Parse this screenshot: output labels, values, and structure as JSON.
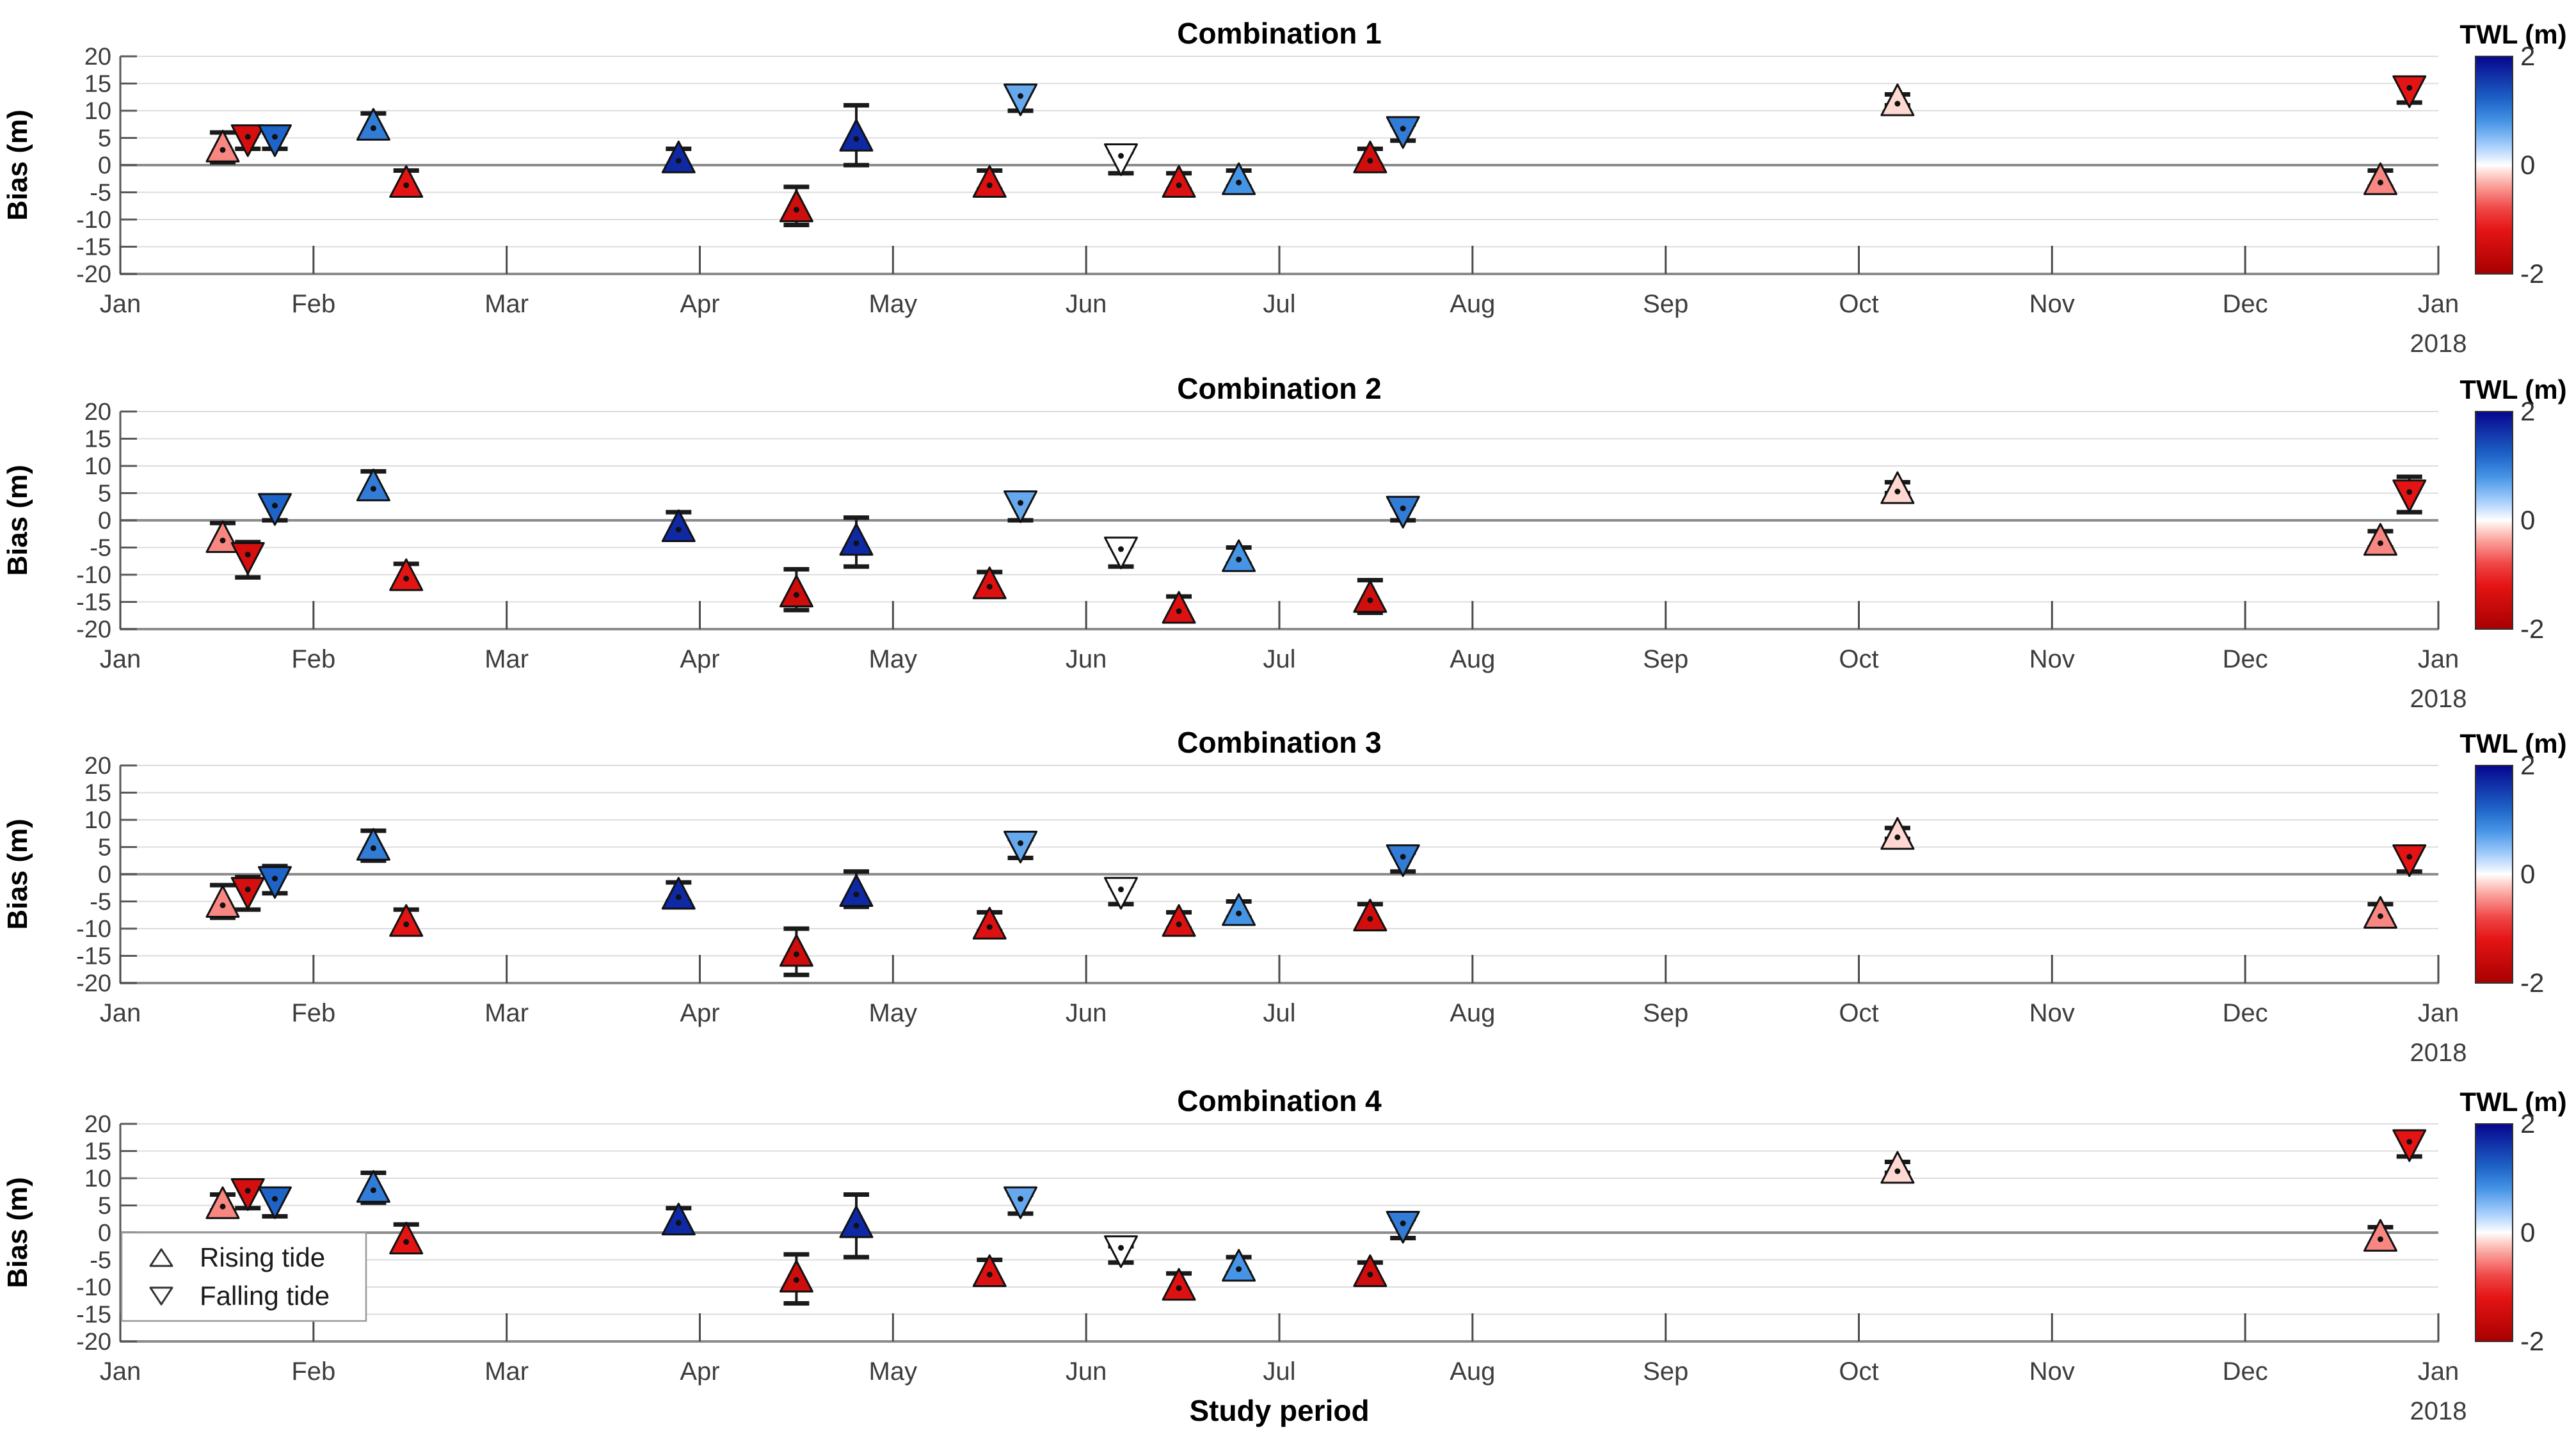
{
  "figure": {
    "ylabel": "Bias (m)",
    "xlabel": "Study period",
    "year_label": "2018",
    "ylim": [
      -20,
      20
    ],
    "y_ticks": [
      20,
      15,
      10,
      5,
      0,
      -5,
      -10,
      -15,
      -20
    ],
    "x_tick_labels": [
      "Jan",
      "Feb",
      "Mar",
      "Apr",
      "May",
      "Jun",
      "Jul",
      "Aug",
      "Sep",
      "Oct",
      "Nov",
      "Dec",
      "Jan"
    ],
    "grid": "horizontal-on",
    "legend": [
      {
        "marker": "rising-triangle-up",
        "label": "Rising tide"
      },
      {
        "marker": "falling-triangle-down",
        "label": "Falling tide"
      }
    ],
    "colorbar": {
      "title": "TWL (m)",
      "tick_labels": [
        "2",
        "0",
        "-2"
      ],
      "tick_values": [
        2,
        0,
        -2
      ],
      "vmin": -2,
      "vmax": 2,
      "stops": [
        {
          "v": -2.0,
          "c": [
            168,
            0,
            0
          ]
        },
        {
          "v": -1.2,
          "c": [
            228,
            20,
            20
          ]
        },
        {
          "v": -0.8,
          "c": [
            240,
            70,
            70
          ]
        },
        {
          "v": -0.4,
          "c": [
            250,
            156,
            150
          ]
        },
        {
          "v": -0.15,
          "c": [
            255,
            216,
            210
          ]
        },
        {
          "v": 0.0,
          "c": [
            255,
            255,
            255
          ]
        },
        {
          "v": 0.15,
          "c": [
            216,
            233,
            255
          ]
        },
        {
          "v": 0.4,
          "c": [
            156,
            200,
            250
          ]
        },
        {
          "v": 0.8,
          "c": [
            70,
            148,
            230
          ]
        },
        {
          "v": 1.2,
          "c": [
            30,
            100,
            200
          ]
        },
        {
          "v": 2.0,
          "c": [
            6,
            6,
            142
          ]
        }
      ]
    },
    "colors": {
      "grid": "#dcdcdc",
      "zero_line": "#8c8c8c",
      "spine": "#595959",
      "bottom_spine": "#8c8c8c",
      "tick": "#4a4a4a",
      "tick_label": "#3d3d3d",
      "marker_edge": "#111111",
      "errorbar": "#1a1a1a",
      "title": "#000000"
    }
  },
  "chart_data": [
    {
      "type": "scatter",
      "title": "Combination 1",
      "xlabel_axis": "months since 2017-01-01 (0 = Jan 2017, 12 = Jan 2018)",
      "point_fields": "m = month position, t = tide (R rising / F falling), b = bias (m), lo/hi = error-bar range (m), twl = TWL color value (m)",
      "points": [
        {
          "m": 0.53,
          "date": "17 Jan",
          "t": "R",
          "b": 3.5,
          "lo": 0.5,
          "hi": 6.0,
          "twl": -0.5
        },
        {
          "m": 0.66,
          "date": "21 Jan",
          "t": "F",
          "b": 4.5,
          "lo": 3.0,
          "hi": 6.0,
          "twl": -1.4
        },
        {
          "m": 0.8,
          "date": "25 Jan",
          "t": "F",
          "b": 4.5,
          "lo": 3.0,
          "hi": 6.0,
          "twl": 1.2
        },
        {
          "m": 1.31,
          "date": "10 Feb",
          "t": "R",
          "b": 7.5,
          "lo": 5.0,
          "hi": 9.5,
          "twl": 1.0
        },
        {
          "m": 1.48,
          "date": "15 Feb",
          "t": "R",
          "b": -3.0,
          "lo": -5.0,
          "hi": -1.0,
          "twl": -1.2
        },
        {
          "m": 2.89,
          "date": "28 Mar",
          "t": "R",
          "b": 1.5,
          "lo": -0.5,
          "hi": 3.0,
          "twl": 1.7
        },
        {
          "m": 3.5,
          "date": "16 Apr",
          "t": "R",
          "b": -7.5,
          "lo": -11.0,
          "hi": -4.0,
          "twl": -1.5
        },
        {
          "m": 3.81,
          "date": "25 Apr",
          "t": "R",
          "b": 5.5,
          "lo": 0.0,
          "hi": 11.0,
          "twl": 1.7
        },
        {
          "m": 4.5,
          "date": "16 May",
          "t": "R",
          "b": -3.0,
          "lo": -4.5,
          "hi": -1.0,
          "twl": -1.3
        },
        {
          "m": 4.66,
          "date": "21 May",
          "t": "F",
          "b": 12.0,
          "lo": 10.0,
          "hi": 14.0,
          "twl": 0.65
        },
        {
          "m": 5.18,
          "date": "6 Jun",
          "t": "F",
          "b": 1.0,
          "lo": -1.5,
          "hi": 2.5,
          "twl": 0.0
        },
        {
          "m": 5.48,
          "date": "15 Jun",
          "t": "R",
          "b": -3.0,
          "lo": -4.5,
          "hi": -1.5,
          "twl": -1.3
        },
        {
          "m": 5.79,
          "date": "24 Jun",
          "t": "R",
          "b": -2.5,
          "lo": -4.0,
          "hi": -1.0,
          "twl": 0.8
        },
        {
          "m": 6.47,
          "date": "15 Jul",
          "t": "R",
          "b": 1.5,
          "lo": 0.0,
          "hi": 3.0,
          "twl": -1.45
        },
        {
          "m": 6.64,
          "date": "20 Jul",
          "t": "F",
          "b": 6.0,
          "lo": 4.5,
          "hi": 7.5,
          "twl": 1.0
        },
        {
          "m": 9.2,
          "date": "8 Oct",
          "t": "R",
          "b": 12.0,
          "lo": 11.0,
          "hi": 13.0,
          "twl": -0.15
        },
        {
          "m": 11.7,
          "date": "22 Dec",
          "t": "R",
          "b": -2.5,
          "lo": -4.0,
          "hi": -1.0,
          "twl": -0.5
        },
        {
          "m": 11.85,
          "date": "26 Dec",
          "t": "F",
          "b": 13.5,
          "lo": 11.5,
          "hi": 15.5,
          "twl": -1.2
        }
      ]
    },
    {
      "type": "scatter",
      "title": "Combination 2",
      "points": [
        {
          "m": 0.53,
          "date": "17 Jan",
          "t": "R",
          "b": -3.0,
          "lo": -5.5,
          "hi": -0.5,
          "twl": -0.5
        },
        {
          "m": 0.66,
          "date": "21 Jan",
          "t": "F",
          "b": -7.0,
          "lo": -10.5,
          "hi": -4.0,
          "twl": -1.4
        },
        {
          "m": 0.8,
          "date": "25 Jan",
          "t": "F",
          "b": 2.0,
          "lo": 0.0,
          "hi": 4.5,
          "twl": 1.2
        },
        {
          "m": 1.31,
          "date": "10 Feb",
          "t": "R",
          "b": 6.5,
          "lo": 4.0,
          "hi": 9.0,
          "twl": 1.0
        },
        {
          "m": 1.48,
          "date": "15 Feb",
          "t": "R",
          "b": -10.0,
          "lo": -12.5,
          "hi": -8.0,
          "twl": -1.2
        },
        {
          "m": 2.89,
          "date": "28 Mar",
          "t": "R",
          "b": -1.0,
          "lo": -3.5,
          "hi": 1.5,
          "twl": 1.7
        },
        {
          "m": 3.5,
          "date": "16 Apr",
          "t": "R",
          "b": -13.0,
          "lo": -16.5,
          "hi": -9.0,
          "twl": -1.5
        },
        {
          "m": 3.81,
          "date": "25 Apr",
          "t": "R",
          "b": -3.5,
          "lo": -8.5,
          "hi": 0.5,
          "twl": 1.7
        },
        {
          "m": 4.5,
          "date": "16 May",
          "t": "R",
          "b": -11.5,
          "lo": -13.5,
          "hi": -9.5,
          "twl": -1.3
        },
        {
          "m": 4.66,
          "date": "21 May",
          "t": "F",
          "b": 2.5,
          "lo": 0.0,
          "hi": 5.0,
          "twl": 0.65
        },
        {
          "m": 5.18,
          "date": "6 Jun",
          "t": "F",
          "b": -6.0,
          "lo": -8.5,
          "hi": -4.5,
          "twl": 0.0
        },
        {
          "m": 5.48,
          "date": "15 Jun",
          "t": "R",
          "b": -16.0,
          "lo": -18.5,
          "hi": -14.0,
          "twl": -1.3
        },
        {
          "m": 5.79,
          "date": "24 Jun",
          "t": "R",
          "b": -6.5,
          "lo": -8.0,
          "hi": -5.0,
          "twl": 0.8
        },
        {
          "m": 6.47,
          "date": "15 Jul",
          "t": "R",
          "b": -14.0,
          "lo": -17.0,
          "hi": -11.0,
          "twl": -1.45
        },
        {
          "m": 6.64,
          "date": "20 Jul",
          "t": "F",
          "b": 1.5,
          "lo": 0.0,
          "hi": 3.0,
          "twl": 1.0
        },
        {
          "m": 9.2,
          "date": "8 Oct",
          "t": "R",
          "b": 6.0,
          "lo": 5.0,
          "hi": 7.0,
          "twl": -0.15
        },
        {
          "m": 11.7,
          "date": "22 Dec",
          "t": "R",
          "b": -3.5,
          "lo": -5.0,
          "hi": -2.0,
          "twl": -0.5
        },
        {
          "m": 11.85,
          "date": "26 Dec",
          "t": "F",
          "b": 4.5,
          "lo": 1.5,
          "hi": 8.0,
          "twl": -1.2
        }
      ]
    },
    {
      "type": "scatter",
      "title": "Combination 3",
      "points": [
        {
          "m": 0.53,
          "date": "17 Jan",
          "t": "R",
          "b": -5.0,
          "lo": -8.0,
          "hi": -2.0,
          "twl": -0.5
        },
        {
          "m": 0.66,
          "date": "21 Jan",
          "t": "F",
          "b": -3.5,
          "lo": -6.5,
          "hi": -0.5,
          "twl": -1.4
        },
        {
          "m": 0.8,
          "date": "25 Jan",
          "t": "F",
          "b": -1.5,
          "lo": -3.5,
          "hi": 1.5,
          "twl": 1.2
        },
        {
          "m": 1.31,
          "date": "10 Feb",
          "t": "R",
          "b": 5.5,
          "lo": 2.5,
          "hi": 8.0,
          "twl": 1.0
        },
        {
          "m": 1.48,
          "date": "15 Feb",
          "t": "R",
          "b": -8.5,
          "lo": -10.5,
          "hi": -6.5,
          "twl": -1.2
        },
        {
          "m": 2.89,
          "date": "28 Mar",
          "t": "R",
          "b": -3.5,
          "lo": -5.0,
          "hi": -1.5,
          "twl": 1.7
        },
        {
          "m": 3.5,
          "date": "16 Apr",
          "t": "R",
          "b": -14.0,
          "lo": -18.5,
          "hi": -10.0,
          "twl": -1.5
        },
        {
          "m": 3.81,
          "date": "25 Apr",
          "t": "R",
          "b": -3.0,
          "lo": -6.0,
          "hi": 0.5,
          "twl": 1.7
        },
        {
          "m": 4.5,
          "date": "16 May",
          "t": "R",
          "b": -9.0,
          "lo": -10.5,
          "hi": -7.0,
          "twl": -1.3
        },
        {
          "m": 4.66,
          "date": "21 May",
          "t": "F",
          "b": 5.0,
          "lo": 3.0,
          "hi": 6.5,
          "twl": 0.65
        },
        {
          "m": 5.18,
          "date": "6 Jun",
          "t": "F",
          "b": -3.5,
          "lo": -5.5,
          "hi": -2.0,
          "twl": 0.0
        },
        {
          "m": 5.48,
          "date": "15 Jun",
          "t": "R",
          "b": -8.5,
          "lo": -10.0,
          "hi": -7.0,
          "twl": -1.3
        },
        {
          "m": 5.79,
          "date": "24 Jun",
          "t": "R",
          "b": -6.5,
          "lo": -8.0,
          "hi": -5.0,
          "twl": 0.8
        },
        {
          "m": 6.47,
          "date": "15 Jul",
          "t": "R",
          "b": -7.5,
          "lo": -10.0,
          "hi": -5.5,
          "twl": -1.45
        },
        {
          "m": 6.64,
          "date": "20 Jul",
          "t": "F",
          "b": 2.5,
          "lo": 0.5,
          "hi": 4.0,
          "twl": 1.0
        },
        {
          "m": 9.2,
          "date": "8 Oct",
          "t": "R",
          "b": 7.5,
          "lo": 6.5,
          "hi": 8.5,
          "twl": -0.15
        },
        {
          "m": 11.7,
          "date": "22 Dec",
          "t": "R",
          "b": -7.0,
          "lo": -8.5,
          "hi": -5.5,
          "twl": -0.5
        },
        {
          "m": 11.85,
          "date": "26 Dec",
          "t": "F",
          "b": 2.5,
          "lo": 0.5,
          "hi": 4.5,
          "twl": -1.2
        }
      ]
    },
    {
      "type": "scatter",
      "title": "Combination 4",
      "points": [
        {
          "m": 0.53,
          "date": "17 Jan",
          "t": "R",
          "b": 5.5,
          "lo": 4.0,
          "hi": 7.0,
          "twl": -0.5
        },
        {
          "m": 0.66,
          "date": "21 Jan",
          "t": "F",
          "b": 7.0,
          "lo": 4.5,
          "hi": 9.5,
          "twl": -1.4
        },
        {
          "m": 0.8,
          "date": "25 Jan",
          "t": "F",
          "b": 5.5,
          "lo": 3.0,
          "hi": 8.0,
          "twl": 1.2
        },
        {
          "m": 1.31,
          "date": "10 Feb",
          "t": "R",
          "b": 8.5,
          "lo": 5.5,
          "hi": 11.0,
          "twl": 1.0
        },
        {
          "m": 1.48,
          "date": "15 Feb",
          "t": "R",
          "b": -1.0,
          "lo": -3.0,
          "hi": 1.5,
          "twl": -1.2
        },
        {
          "m": 2.89,
          "date": "28 Mar",
          "t": "R",
          "b": 2.5,
          "lo": 0.5,
          "hi": 4.5,
          "twl": 1.7
        },
        {
          "m": 3.5,
          "date": "16 Apr",
          "t": "R",
          "b": -8.0,
          "lo": -13.0,
          "hi": -4.0,
          "twl": -1.5
        },
        {
          "m": 3.81,
          "date": "25 Apr",
          "t": "R",
          "b": 2.0,
          "lo": -4.5,
          "hi": 7.0,
          "twl": 1.7
        },
        {
          "m": 4.5,
          "date": "16 May",
          "t": "R",
          "b": -7.0,
          "lo": -9.0,
          "hi": -5.0,
          "twl": -1.3
        },
        {
          "m": 4.66,
          "date": "21 May",
          "t": "F",
          "b": 5.5,
          "lo": 3.5,
          "hi": 7.0,
          "twl": 0.65
        },
        {
          "m": 5.18,
          "date": "6 Jun",
          "t": "F",
          "b": -3.5,
          "lo": -5.5,
          "hi": -2.5,
          "twl": 0.0
        },
        {
          "m": 5.48,
          "date": "15 Jun",
          "t": "R",
          "b": -9.5,
          "lo": -12.0,
          "hi": -7.5,
          "twl": -1.3
        },
        {
          "m": 5.79,
          "date": "24 Jun",
          "t": "R",
          "b": -6.0,
          "lo": -7.5,
          "hi": -4.5,
          "twl": 0.8
        },
        {
          "m": 6.47,
          "date": "15 Jul",
          "t": "R",
          "b": -7.0,
          "lo": -9.0,
          "hi": -5.5,
          "twl": -1.45
        },
        {
          "m": 6.64,
          "date": "20 Jul",
          "t": "F",
          "b": 1.0,
          "lo": -1.0,
          "hi": 2.5,
          "twl": 1.0
        },
        {
          "m": 9.2,
          "date": "8 Oct",
          "t": "R",
          "b": 12.0,
          "lo": 11.0,
          "hi": 13.0,
          "twl": -0.15
        },
        {
          "m": 11.7,
          "date": "22 Dec",
          "t": "R",
          "b": -0.5,
          "lo": -2.5,
          "hi": 1.0,
          "twl": -0.5
        },
        {
          "m": 11.85,
          "date": "26 Dec",
          "t": "F",
          "b": 16.0,
          "lo": 14.0,
          "hi": 18.0,
          "twl": -1.2
        }
      ]
    }
  ]
}
